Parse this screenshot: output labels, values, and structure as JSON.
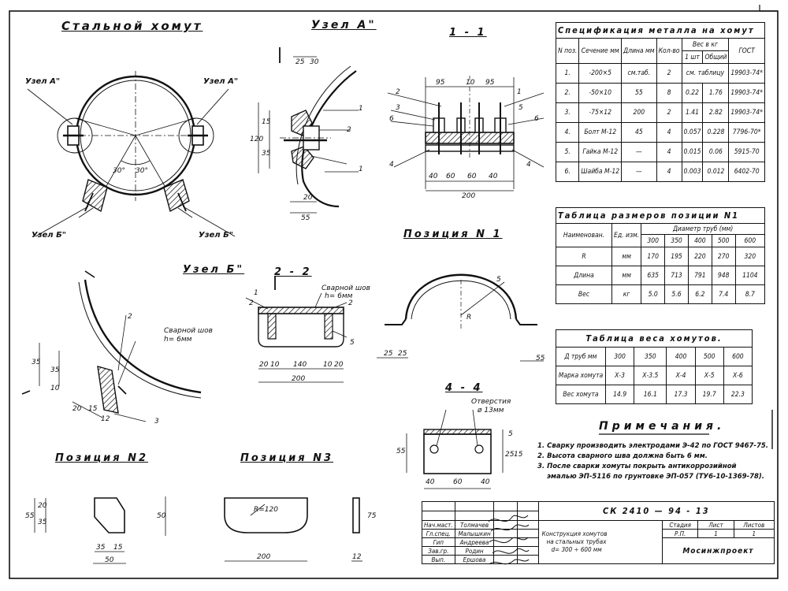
{
  "titles": {
    "main": "Стальной хомут",
    "node_a": "Узел А\"",
    "section_11": "1 - 1",
    "node_b": "Узел Б\"",
    "section_22": "2 - 2",
    "position1": "Позиция N 1",
    "position2": "Позиция N2",
    "position3": "Позиция N3",
    "section_44": "4 - 4"
  },
  "callouts": {
    "uzel_a_left": "Узел А\"",
    "uzel_a_right": "Узел А\"",
    "uzel_b_left": "Узел Б\"",
    "uzel_b_right": "Узел Б\"",
    "angle_left": "30°",
    "angle_right": "30°",
    "weld1": "Сварной шов",
    "weld1_size": "h= 6мм",
    "weld2": "Сварной шов",
    "weld2_size": "h= 6мм",
    "holes": "Отверстия",
    "holes_size": "ø 13мм",
    "radius_r": "R",
    "radius_pos3": "R=120"
  },
  "dimensions": {
    "a_25": "25",
    "a_30": "30",
    "a_120": "120",
    "a_15": "15",
    "a_35": "35",
    "a_20": "20",
    "a_55": "55",
    "s_95a": "95",
    "s_10": "10",
    "s_95b": "95",
    "s_40a": "40",
    "s_60a": "60",
    "s_60b": "60",
    "s_40b": "40",
    "s_200": "200",
    "b_35": "35",
    "b_35b": "35",
    "b_10": "10",
    "b_20": "20",
    "b_15": "15",
    "b_12": "12",
    "s2_20": "20",
    "s2_10": "10",
    "s2_140": "140",
    "s2_10b": "10",
    "s2_20b": "20",
    "s2_200": "200",
    "p1_25a": "25",
    "p1_25b": "25",
    "p1_55": "55",
    "p2_55": "55",
    "p2_35": "35",
    "p2_20": "20",
    "p2_35b": "35",
    "p2_15": "15",
    "p2_50": "50",
    "p2_50b": "50",
    "p3_200": "200",
    "p3_75": "75",
    "p3_12": "12",
    "s4_55": "55",
    "s4_25": "25",
    "s4_15": "15",
    "s4_5": "5",
    "s4_40a": "40",
    "s4_60": "60",
    "s4_40b": "40"
  },
  "leaders": {
    "n1": "1",
    "n2": "2",
    "n3": "3",
    "n4": "4",
    "n5": "5",
    "n6": "6"
  },
  "spec_table": {
    "title": "Спецификация металла на хомут",
    "headers": [
      "N поз.",
      "Сечение мм",
      "Длина мм",
      "Кол-во",
      "Вес в кг",
      "ГОСТ"
    ],
    "weight_sub": [
      "1 шт",
      "Общий"
    ],
    "rows": [
      [
        "1.",
        "-200×5",
        "см.таб.",
        "2",
        "см. таблицу",
        "19903-74*"
      ],
      [
        "2.",
        "-50×10",
        "55",
        "8",
        "0.22",
        "1.76",
        "19903-74*"
      ],
      [
        "3.",
        "-75×12",
        "200",
        "2",
        "1.41",
        "2.82",
        "19903-74*"
      ],
      [
        "4.",
        "Болт М-12",
        "45",
        "4",
        "0.057",
        "0.228",
        "7796-70*"
      ],
      [
        "5.",
        "Гайка М-12",
        "—",
        "4",
        "0.015",
        "0.06",
        "5915-70"
      ],
      [
        "6.",
        "Шайба М-12",
        "—",
        "4",
        "0.003",
        "0.012",
        "6402-70"
      ]
    ]
  },
  "size_table": {
    "title": "Таблица размеров позиции N1",
    "h_name": "Наименован.",
    "h_unit": "Ед. изм.",
    "h_diam": "Диаметр труб (мм)",
    "diams": [
      "300",
      "350",
      "400",
      "500",
      "600"
    ],
    "rows": [
      [
        "R",
        "мм",
        "170",
        "195",
        "220",
        "270",
        "320"
      ],
      [
        "Длина",
        "мм",
        "635",
        "713",
        "791",
        "948",
        "1104"
      ],
      [
        "Вес",
        "кг",
        "5.0",
        "5.6",
        "6.2",
        "7.4",
        "8.7"
      ]
    ]
  },
  "weight_table": {
    "title": "Таблица веса хомутов.",
    "rows": [
      [
        "Д труб мм",
        "300",
        "350",
        "400",
        "500",
        "600"
      ],
      [
        "Марка хомута",
        "Х-3",
        "Х-3.5",
        "Х-4",
        "Х-5",
        "Х-6"
      ],
      [
        "Вес хомута",
        "14.9",
        "16.1",
        "17.3",
        "19.7",
        "22.3"
      ]
    ]
  },
  "notes": {
    "title": "Примечания.",
    "lines": [
      "1. Сварку производить электродами Э-42 по ГОСТ 9467-75.",
      "2. Высота сварного шва должна быть 6 мм.",
      "3. После сварки хомуты покрыть антикоррозийной",
      "эмалью ЭП-5116 по грунтовке ЭП-057 (ТУ6-10-1369-78)."
    ]
  },
  "title_block": {
    "code": "СК 2410 — 94 - 13",
    "roles": [
      "Нач.маст.",
      "Гл.спец.",
      "Гип",
      "Зав.гр.",
      "Вып."
    ],
    "names": [
      "Толмачев",
      "Малышкин",
      "Андреева",
      "Родин",
      "Ершова"
    ],
    "desc1": "Конструкция хомутов",
    "desc2": "на стальных трубах",
    "desc3": "d= 300 ÷ 600 мм",
    "stage_h": "Стадия",
    "sheet_h": "Лист",
    "sheets_h": "Листов",
    "stage": "Р.П.",
    "sheet": "1",
    "sheets": "1",
    "org": "Мосинжпроект"
  }
}
